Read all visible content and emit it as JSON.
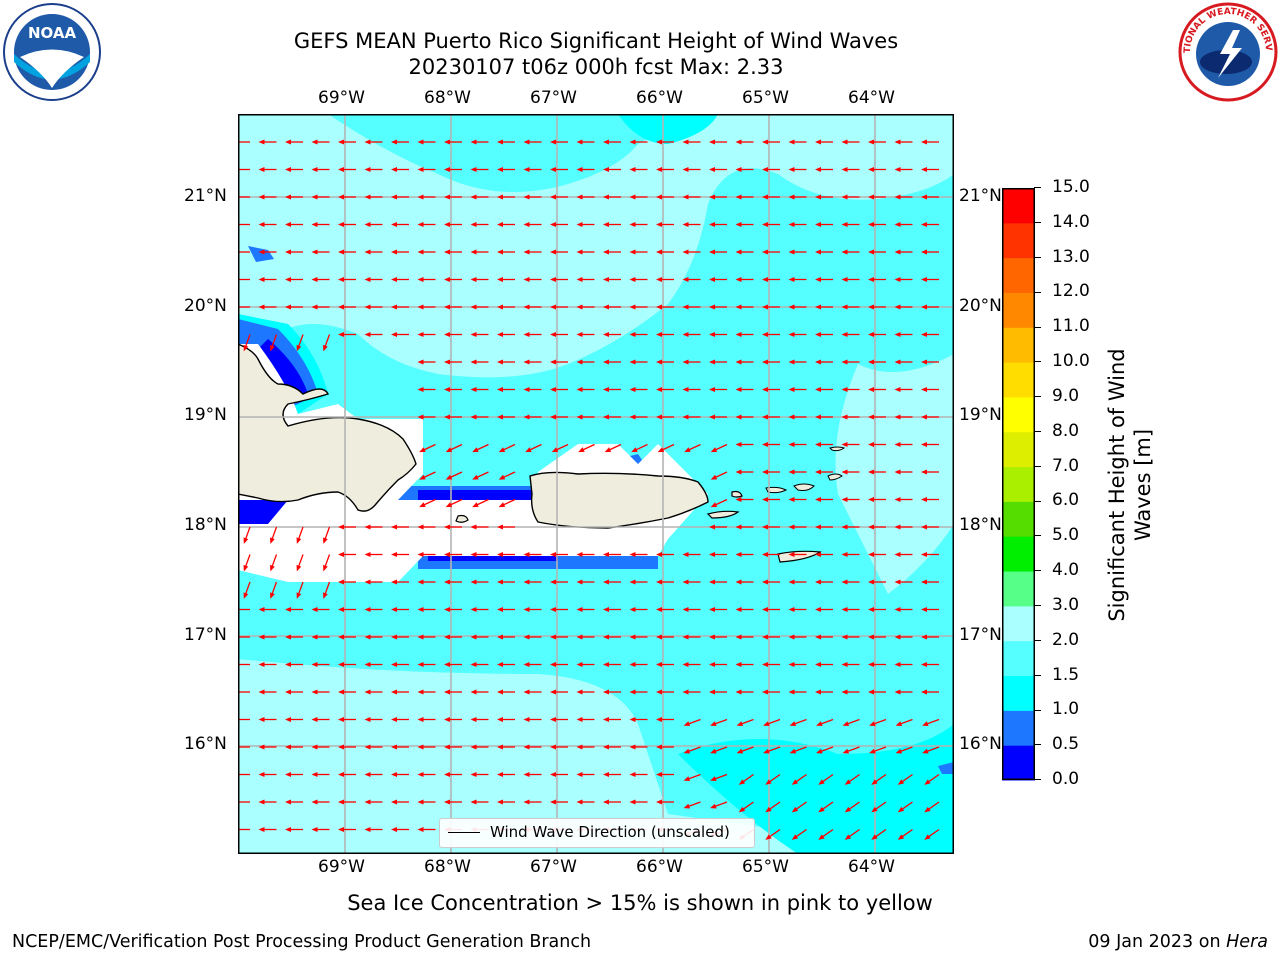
{
  "header": {
    "title_line1": "GEFS MEAN Puerto Rico Significant Height of Wind Waves",
    "title_line2": "20230107 t06z 000h fcst   Max: 2.33"
  },
  "logos": {
    "left": "noaa-logo",
    "left_text": "NOAA",
    "right": "nws-logo",
    "right_text": "NATIONAL WEATHER SERVICE"
  },
  "map": {
    "lon_labels": [
      "69°W",
      "68°W",
      "67°W",
      "66°W",
      "65°W",
      "64°W"
    ],
    "lat_labels": [
      "21°N",
      "20°N",
      "19°N",
      "18°N",
      "17°N",
      "16°N"
    ],
    "legend_label": "Wind Wave Direction (unscaled)",
    "arrow_color": "#ff0000",
    "land_color": "#efedde",
    "lon_range": [
      -70,
      -63.25
    ],
    "lat_range": [
      15,
      21.75
    ]
  },
  "colorbar": {
    "label_line1": "Significant Height of Wind",
    "label_line2": "Waves [m]",
    "ticks": [
      "0.0",
      "0.5",
      "1.0",
      "1.5",
      "2.0",
      "3.0",
      "4.0",
      "5.0",
      "6.0",
      "7.0",
      "8.0",
      "9.0",
      "10.0",
      "11.0",
      "12.0",
      "13.0",
      "14.0",
      "15.0"
    ],
    "colors": [
      "#0000ff",
      "#1e78ff",
      "#00ffff",
      "#55ffff",
      "#aaffff",
      "#55ff88",
      "#00ee00",
      "#55dd00",
      "#aaee00",
      "#ddee00",
      "#ffff00",
      "#ffdd00",
      "#ffbb00",
      "#ff8800",
      "#ff6600",
      "#ff3300",
      "#ff0000"
    ]
  },
  "notes": {
    "sea_ice": "Sea Ice Concentration > 15% is shown in pink to yellow"
  },
  "footer": {
    "left": "NCEP/EMC/Verification Post Processing Product Generation Branch",
    "right_date": "09 Jan 2023 on",
    "right_machine": "Hera"
  }
}
